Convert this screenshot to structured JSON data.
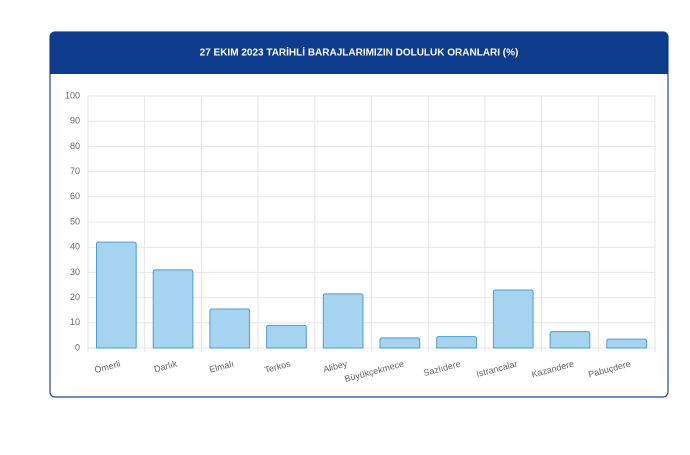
{
  "chart_data": {
    "type": "bar",
    "title": "27 EKIM 2023 TARİHLİ BARAJLARIMIZIN DOLULUK ORANLARI (%)",
    "categories": [
      "Ömerli",
      "Darlık",
      "Elmalı",
      "Terkos",
      "Alibey",
      "Büyükçekmece",
      "Sazlıdere",
      "Istrancalar",
      "Kazandere",
      "Pabuçdere"
    ],
    "values": [
      42,
      31,
      15.5,
      9,
      21.5,
      4,
      4.5,
      23,
      6.5,
      3.5
    ],
    "color": "#a6d3f0",
    "ylim": [
      0,
      100
    ],
    "yticks": [
      0,
      10,
      20,
      30,
      40,
      50,
      60,
      70,
      80,
      90,
      100
    ],
    "grid": true
  }
}
